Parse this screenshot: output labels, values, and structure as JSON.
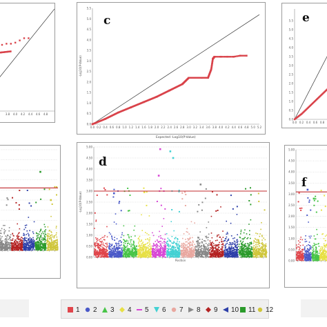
{
  "panels": {
    "a_letter": "",
    "b_letter": "",
    "c_letter": "c",
    "d_letter": "d",
    "e_letter": "e",
    "f_letter": "f"
  },
  "qq": {
    "xlabel": "Expected -Log10(P-Value)",
    "ylabel": "-Log10(P-Value)",
    "x_ticks": [
      "0.0",
      "0.2",
      "0.4",
      "0.6",
      "0.8",
      "1.0",
      "1.2",
      "1.4",
      "1.6",
      "1.8",
      "2.0",
      "2.2",
      "2.4",
      "2.6",
      "2.8",
      "3.0",
      "3.2",
      "3.4",
      "3.6",
      "3.8",
      "4.0",
      "4.2",
      "4.4",
      "4.6",
      "4.8",
      "5.0",
      "5.2"
    ],
    "y_ticks": [
      "0.0",
      "0.5",
      "1.0",
      "1.5",
      "2.0",
      "2.5",
      "3.0",
      "3.5",
      "4.0",
      "4.5",
      "5.0",
      "5.5"
    ]
  },
  "manhattan": {
    "xlabel": "Position",
    "ylabel": "-Log10(P-Value)",
    "y_ticks": [
      "0.00",
      "0.50",
      "1.00",
      "1.50",
      "2.00",
      "2.50",
      "3.00",
      "3.50",
      "4.00",
      "4.50",
      "5.00"
    ],
    "threshold_color": "#c0282d"
  },
  "legend": {
    "items": [
      {
        "label": "1",
        "color": "#e0454b",
        "shape": "square"
      },
      {
        "label": "2",
        "color": "#4a59c8",
        "shape": "circle"
      },
      {
        "label": "3",
        "color": "#47c447",
        "shape": "triangle-up"
      },
      {
        "label": "4",
        "color": "#e7e045",
        "shape": "diamond"
      },
      {
        "label": "5",
        "color": "#d846d6",
        "shape": "line"
      },
      {
        "label": "6",
        "color": "#43d1d3",
        "shape": "triangle-down"
      },
      {
        "label": "7",
        "color": "#e9a8a0",
        "shape": "circle"
      },
      {
        "label": "8",
        "color": "#888888",
        "shape": "triangle-right"
      },
      {
        "label": "9",
        "color": "#b42323",
        "shape": "diamond"
      },
      {
        "label": "10",
        "color": "#2d3fa8",
        "shape": "triangle-left"
      },
      {
        "label": "11",
        "color": "#2a9a2a",
        "shape": "square"
      },
      {
        "label": "12",
        "color": "#cfc63a",
        "shape": "circle"
      }
    ]
  },
  "chart_data": [
    {
      "type": "scatter",
      "panel": "a",
      "title": "",
      "xlabel": "Expected -Log10(P-Value)",
      "ylabel": "-Log10(P-Value)",
      "series": [
        {
          "x": [
            2.6,
            3.0,
            3.4,
            3.8,
            4.2,
            4.6,
            5.0
          ],
          "y": [
            3.0,
            3.05,
            3.05,
            3.1,
            3.2,
            3.3,
            3.3
          ]
        }
      ]
    },
    {
      "type": "scatter",
      "panel": "c",
      "title": "",
      "xlabel": "Expected -Log10(P-Value)",
      "ylabel": "-Log10(P-Value)",
      "xlim": [
        0,
        5.2
      ],
      "ylim": [
        0,
        5.5
      ],
      "series": [
        {
          "x": [
            0.0,
            0.4,
            0.8,
            1.2,
            1.6,
            2.0,
            2.4,
            2.8,
            3.0,
            3.4,
            3.6,
            3.7,
            3.75,
            3.8,
            4.0,
            4.2,
            4.4,
            4.6,
            4.8
          ],
          "y": [
            0.0,
            0.25,
            0.55,
            0.8,
            1.05,
            1.3,
            1.6,
            1.9,
            2.2,
            2.2,
            2.2,
            2.6,
            3.1,
            3.2,
            3.2,
            3.2,
            3.2,
            3.25,
            3.25
          ]
        }
      ]
    },
    {
      "type": "scatter",
      "panel": "e",
      "title": "",
      "xlabel": "Expected -Log10(P-Value)",
      "ylabel": "-Log10(P-Value)",
      "series": [
        {
          "x": [
            0.0,
            0.2,
            0.4,
            0.6,
            0.8,
            1.0
          ],
          "y": [
            0.0,
            0.2,
            0.45,
            0.7,
            0.95,
            1.2
          ]
        }
      ]
    },
    {
      "type": "scatter",
      "panel": "b",
      "title": "",
      "ylabel": "-Log10(P-Value)",
      "threshold": 3.1
    },
    {
      "type": "scatter",
      "panel": "d",
      "title": "",
      "xlabel": "Position",
      "ylabel": "-Log10(P-Value)",
      "ylim": [
        0,
        5.0
      ],
      "threshold": 3.0
    },
    {
      "type": "scatter",
      "panel": "f",
      "title": "",
      "ylabel": "-Log10(P-Value)",
      "threshold": 3.1
    }
  ]
}
